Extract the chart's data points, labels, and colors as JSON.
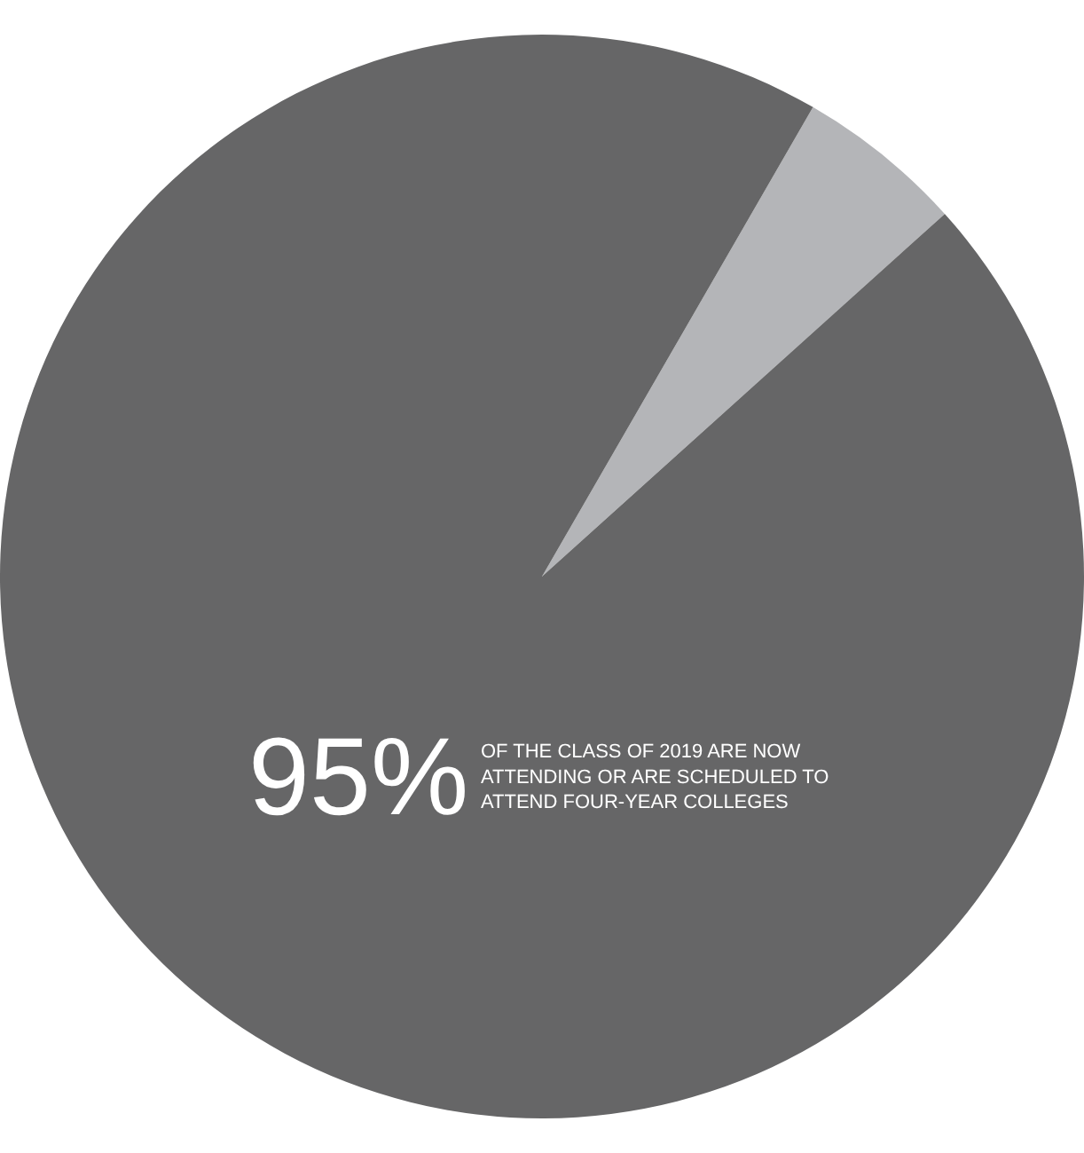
{
  "chart_data": {
    "type": "pie",
    "categories": [
      null,
      null
    ],
    "values": [
      5,
      95
    ],
    "colors": [
      "#b4b5b8",
      "#666667"
    ],
    "annotations": [
      "95%",
      "OF THE CLASS OF 2019 ARE NOW\nATTENDING OR ARE SCHEDULED TO\nATTEND FOUR-YEAR COLLEGES"
    ],
    "legend": false
  }
}
